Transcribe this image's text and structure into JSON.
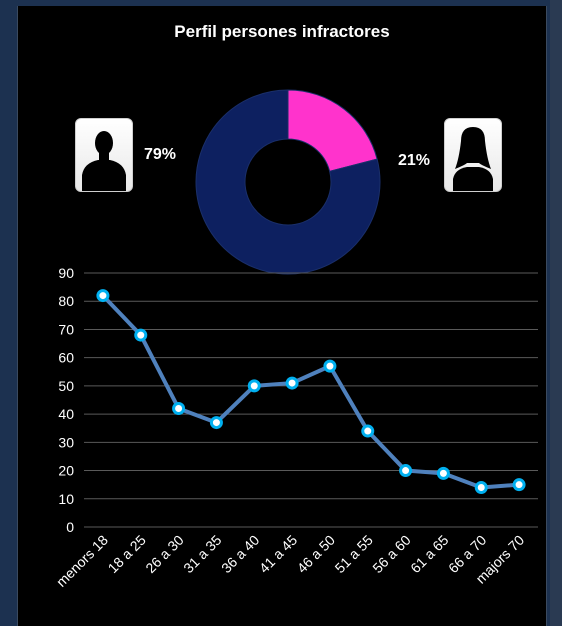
{
  "chart_data": [
    {
      "type": "pie",
      "title": "Perfil persones infractores",
      "donut": true,
      "slices": [
        {
          "label": "79%",
          "value": 79,
          "color": "#0d2060"
        },
        {
          "label": "21%",
          "value": 21,
          "color": "#ff33cc"
        }
      ],
      "icons": [
        "male-silhouette-icon",
        "female-silhouette-icon"
      ]
    },
    {
      "type": "line",
      "categories": [
        "menors 18",
        "18 a 25",
        "26 a 30",
        "31 a 35",
        "36 a 40",
        "41 a 45",
        "46 a 50",
        "51 a 55",
        "56 a 60",
        "61 a 65",
        "66 a 70",
        "majors 70"
      ],
      "series": [
        {
          "values": [
            82,
            68,
            42,
            37,
            50,
            51,
            57,
            34,
            20,
            19,
            14,
            15
          ],
          "color": "#4f81bd",
          "marker_color": "#00b0f0"
        }
      ],
      "ylim": [
        0,
        90
      ],
      "yticks": [
        0,
        10,
        20,
        30,
        40,
        50,
        60,
        70,
        80,
        90
      ],
      "grid": true
    }
  ]
}
